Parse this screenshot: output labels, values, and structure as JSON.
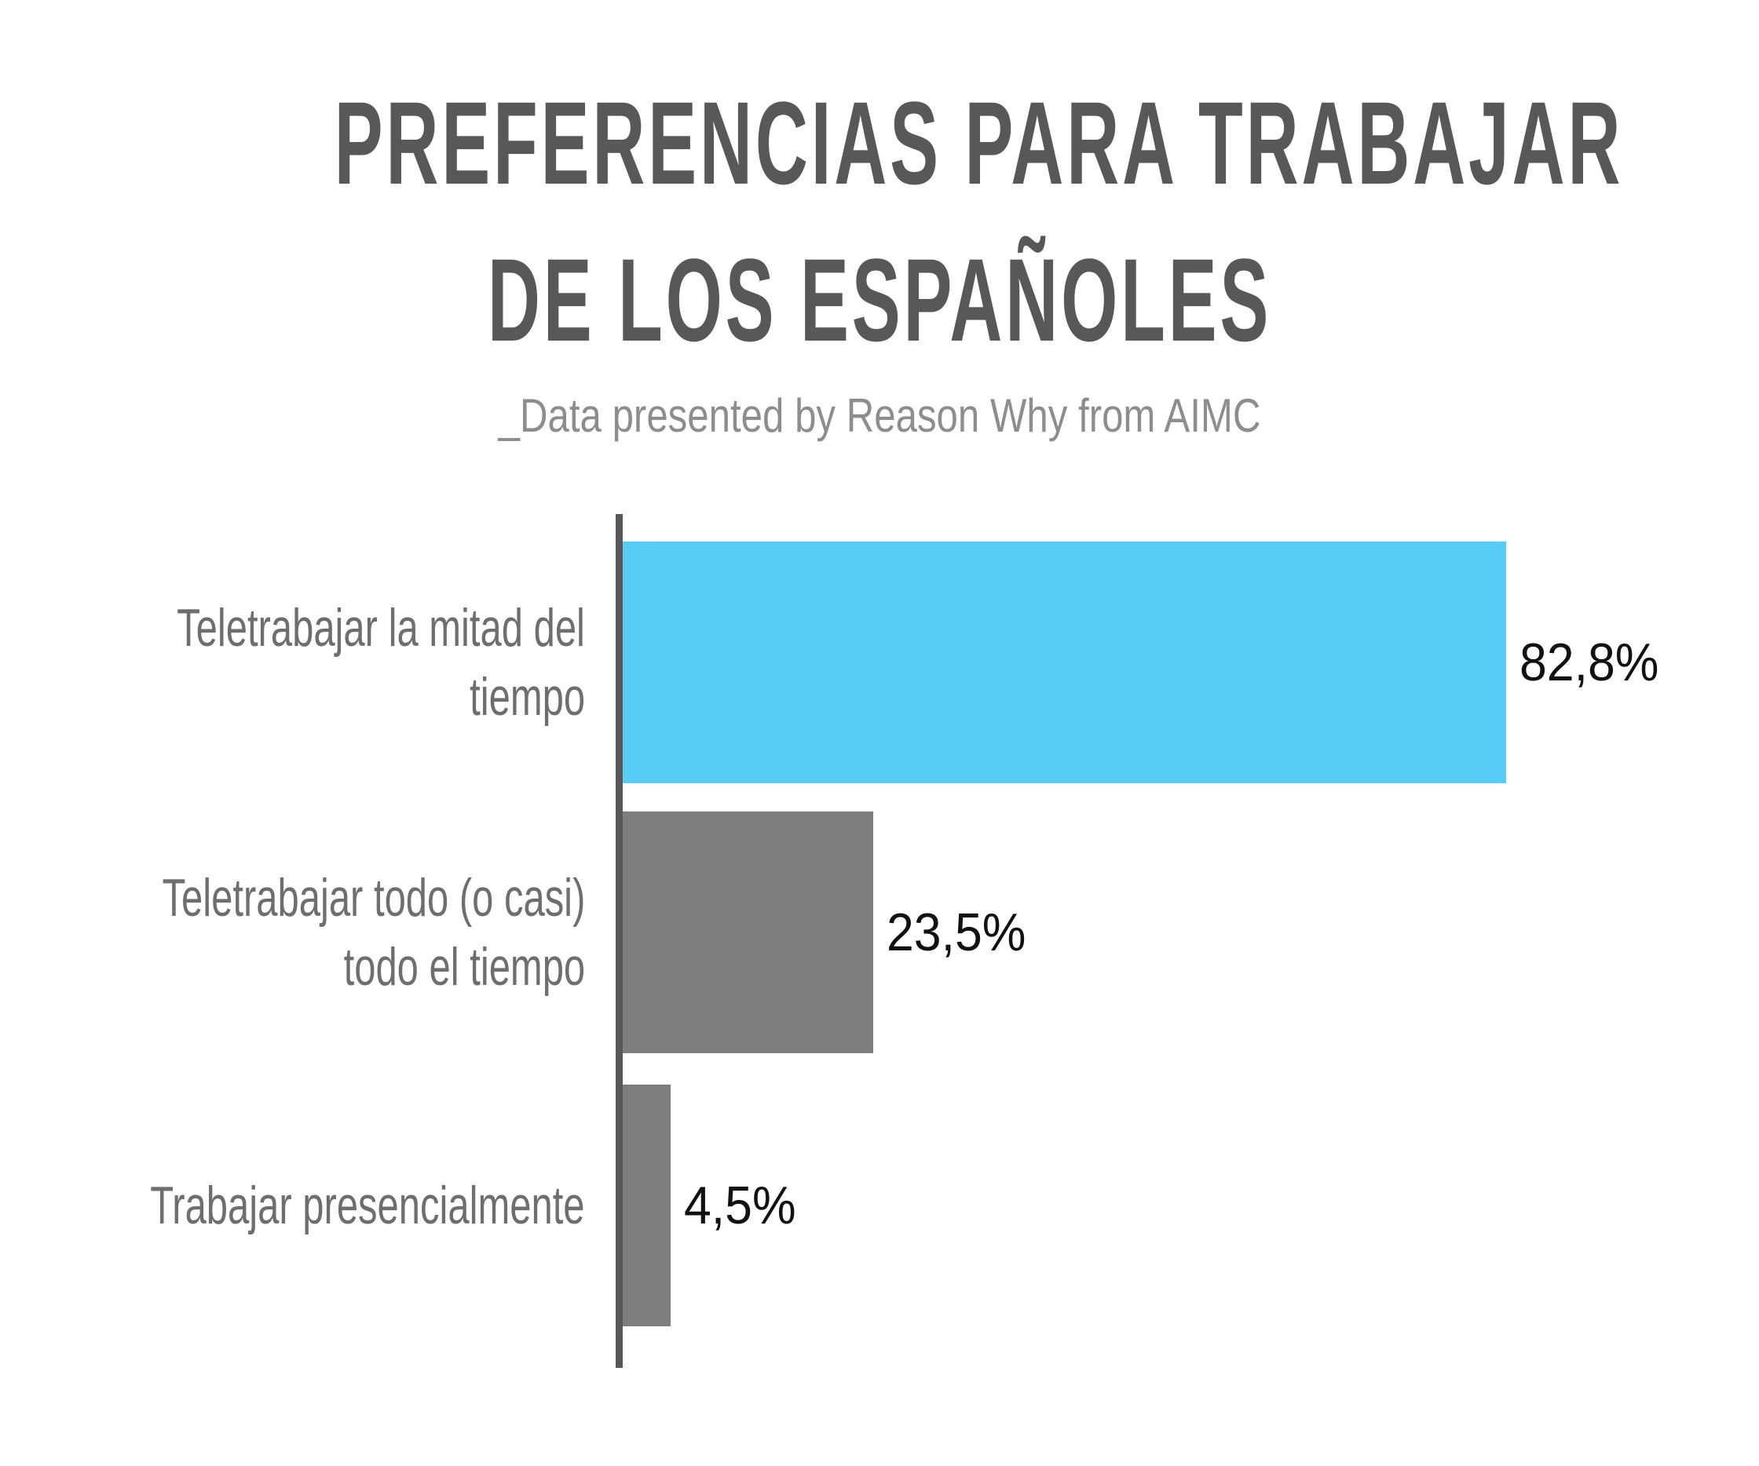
{
  "chart_data": {
    "type": "bar",
    "orientation": "horizontal",
    "title": "PREFERENCIAS PARA TRABAJAR DE LOS ESPAÑOLES",
    "title_lines": [
      "PREFERENCIAS PARA TRABAJAR",
      "DE LOS ESPAÑOLES"
    ],
    "subtitle": "_Data presented by Reason Why from AIMC",
    "categories": [
      "Teletrabajar la mitad del tiempo",
      "Teletrabajar todo (o casi) todo el tiempo",
      "Trabajar presencialmente"
    ],
    "values": [
      82.8,
      23.5,
      4.5
    ],
    "value_labels": [
      "82,8%",
      "23,5%",
      "4,5%"
    ],
    "xlim": [
      0,
      100
    ],
    "grid": false,
    "legend": false,
    "rows": [
      {
        "label_lines": [
          "Teletrabajar la mitad del",
          "tiempo"
        ],
        "value": 82.8,
        "value_label": "82,8%",
        "color": "#56CCF7"
      },
      {
        "label_lines": [
          "Teletrabajar todo (o casi)",
          "todo el tiempo"
        ],
        "value": 23.5,
        "value_label": "23,5%",
        "color": "#7E7E7E"
      },
      {
        "label_lines": [
          "Trabajar presencialmente"
        ],
        "value": 4.5,
        "value_label": "4,5%",
        "color": "#7E7E7E"
      }
    ],
    "colors": {
      "highlight_bar": "#56CCF7",
      "default_bar": "#7E7E7E",
      "axis": "#58585A",
      "title_text": "#58585A",
      "label_text": "#6E6E6E",
      "subtitle_text": "#8D8D8D",
      "value_text": "#111111"
    }
  }
}
